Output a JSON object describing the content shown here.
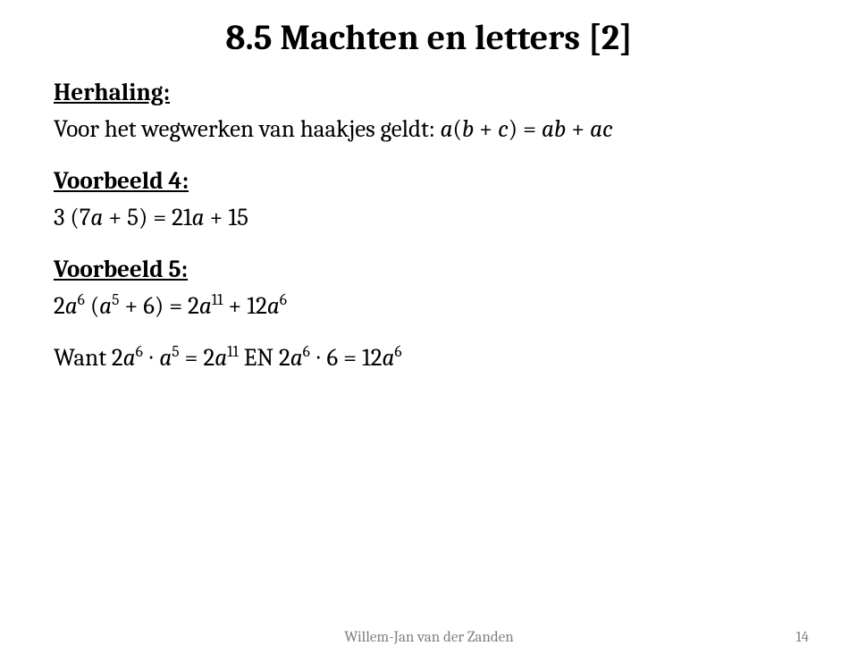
{
  "title": "8.5 Machten en letters [2]",
  "section1": {
    "heading": "Herhaling:",
    "line_prefix": "Voor het wegwerken van haakjes geldt: ",
    "expr_a": "a",
    "paren_open": "(",
    "expr_b": "b",
    "plus1": " + ",
    "expr_c": "c",
    "paren_close": ")",
    "equals": " = ",
    "expr_ab": "ab",
    "plus2": " + ",
    "expr_ac": "ac"
  },
  "section2": {
    "heading": "Voorbeeld 4:",
    "prefix": "3 (7",
    "a1": "a",
    "mid1": " + 5) = 21",
    "a2": "a",
    "tail": " + 15"
  },
  "section3": {
    "heading": "Voorbeeld 5:",
    "t1": "2",
    "a1": "a",
    "sup1": "6",
    "t2": " (",
    "a2": "a",
    "sup2": "5",
    "t3": " + 6) = 2",
    "a3": "a",
    "sup3": "11",
    "t4": " + 12",
    "a4": "a",
    "sup4": "6"
  },
  "section4": {
    "t1": "Want 2",
    "a1": "a",
    "sup1": "6",
    "dot1": " ∙ ",
    "a2": "a",
    "sup2": "5",
    "t2": " = 2",
    "a3": "a",
    "sup3": "11",
    "t3": " EN 2",
    "a4": "a",
    "sup4": "6",
    "dot2": " ∙ 6 = 12",
    "a5": "a",
    "sup5": "6"
  },
  "footer": {
    "name": "Willem-Jan van der Zanden",
    "page": "14"
  }
}
